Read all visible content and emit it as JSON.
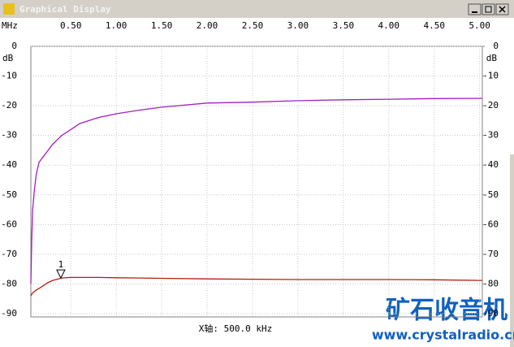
{
  "window": {
    "title": "Graphical Display"
  },
  "chart_data": {
    "type": "line",
    "x_unit": "MHz",
    "y_unit": "dB",
    "y2_unit": "dB",
    "x_label": "X轴: 500.0 kHz",
    "x": [
      0.06,
      0.07,
      0.08,
      0.1,
      0.12,
      0.15,
      0.2,
      0.25,
      0.3,
      0.4,
      0.5,
      0.6,
      0.8,
      1.0,
      1.25,
      1.5,
      2.0,
      2.5,
      3.0,
      3.5,
      4.0,
      4.5,
      5.03
    ],
    "series": [
      {
        "color": "#a020c0",
        "values": [
          -80,
          -65,
          -55,
          -48,
          -43,
          -39,
          -37,
          -35,
          -33,
          -30,
          -28,
          -26,
          -24,
          -22.7,
          -21.5,
          -20.5,
          -19.1,
          -18.8,
          -18.3,
          -18.0,
          -17.8,
          -17.6,
          -17.5
        ]
      },
      {
        "color": "#b02010",
        "values": [
          -84,
          -83.5,
          -83,
          -82.5,
          -82,
          -81.5,
          -80.5,
          -79.5,
          -78.8,
          -78,
          -77.8,
          -77.8,
          -77.8,
          -77.9,
          -78,
          -78.1,
          -78.3,
          -78.4,
          -78.5,
          -78.5,
          -78.5,
          -78.6,
          -78.8
        ]
      }
    ],
    "marker": {
      "label": "1",
      "x": 0.39,
      "y": -78
    },
    "xlim": [
      0.06,
      5.03
    ],
    "xticks": [
      {
        "value": 0.5,
        "label": "0.50"
      },
      {
        "value": 1,
        "label": "1.00"
      },
      {
        "value": 1.5,
        "label": "1.50"
      },
      {
        "value": 2,
        "label": "2.00"
      },
      {
        "value": 2.5,
        "label": "2.50"
      },
      {
        "value": 3,
        "label": "3.00"
      },
      {
        "value": 3.5,
        "label": "3.50"
      },
      {
        "value": 4,
        "label": "4.00"
      },
      {
        "value": 4.5,
        "label": "4.50"
      },
      {
        "value": 5,
        "label": "5.00"
      }
    ],
    "ylim": [
      -90,
      0
    ],
    "yticks": [
      0,
      -10,
      -20,
      -30,
      -40,
      -50,
      -60,
      -70,
      -80,
      -90
    ],
    "y2lim": [
      -90,
      0
    ],
    "y2ticks": [
      0,
      -10,
      -20,
      -30,
      -40,
      -50,
      -60,
      -70,
      -80,
      -90
    ],
    "grid": true
  },
  "watermark": {
    "title": "矿石收音机",
    "url": "www.crystalradio.cn"
  }
}
